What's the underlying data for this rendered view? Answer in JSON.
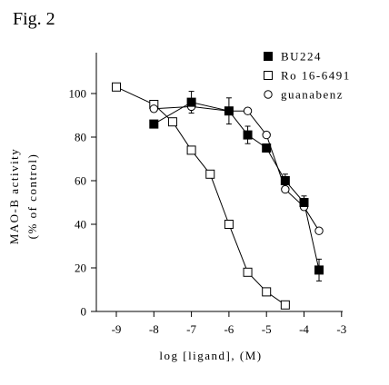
{
  "figure_label": "Fig. 2",
  "chart_data": {
    "type": "scatter",
    "xlabel": "log [ligand], (M)",
    "ylabel_line1": "MAO-B activity",
    "ylabel_line2": "(% of control)",
    "xlim": [
      -9,
      -3
    ],
    "ylim": [
      0,
      120
    ],
    "xticks": [
      -9,
      -8,
      -7,
      -6,
      -5,
      -4,
      -3
    ],
    "yticks": [
      0,
      20,
      40,
      60,
      80,
      100
    ],
    "grid": false,
    "legend_position": "top-right",
    "series": [
      {
        "name": "BU224",
        "marker": "filled-square",
        "x": [
          -8,
          -7,
          -6,
          -5.5,
          -5,
          -4.5,
          -4,
          -3.6
        ],
        "y": [
          86,
          96,
          92,
          81,
          75,
          60,
          50,
          19
        ],
        "err": [
          0,
          5,
          6,
          4,
          0,
          3,
          3,
          5
        ]
      },
      {
        "name": "Ro 16-6491",
        "marker": "open-square",
        "x": [
          -9,
          -8,
          -7.5,
          -7,
          -6.5,
          -6,
          -5.5,
          -5,
          -4.5
        ],
        "y": [
          103,
          95,
          87,
          74,
          63,
          40,
          18,
          9,
          3
        ],
        "err": [
          0,
          0,
          0,
          0,
          0,
          0,
          0,
          0,
          0
        ]
      },
      {
        "name": "guanabenz",
        "marker": "open-circle",
        "x": [
          -8,
          -7,
          -6,
          -5.5,
          -5,
          -4.5,
          -4,
          -3.6
        ],
        "y": [
          93,
          94,
          92,
          92,
          81,
          56,
          48,
          37
        ],
        "err": [
          0,
          0,
          0,
          0,
          0,
          0,
          0,
          0
        ]
      }
    ]
  }
}
